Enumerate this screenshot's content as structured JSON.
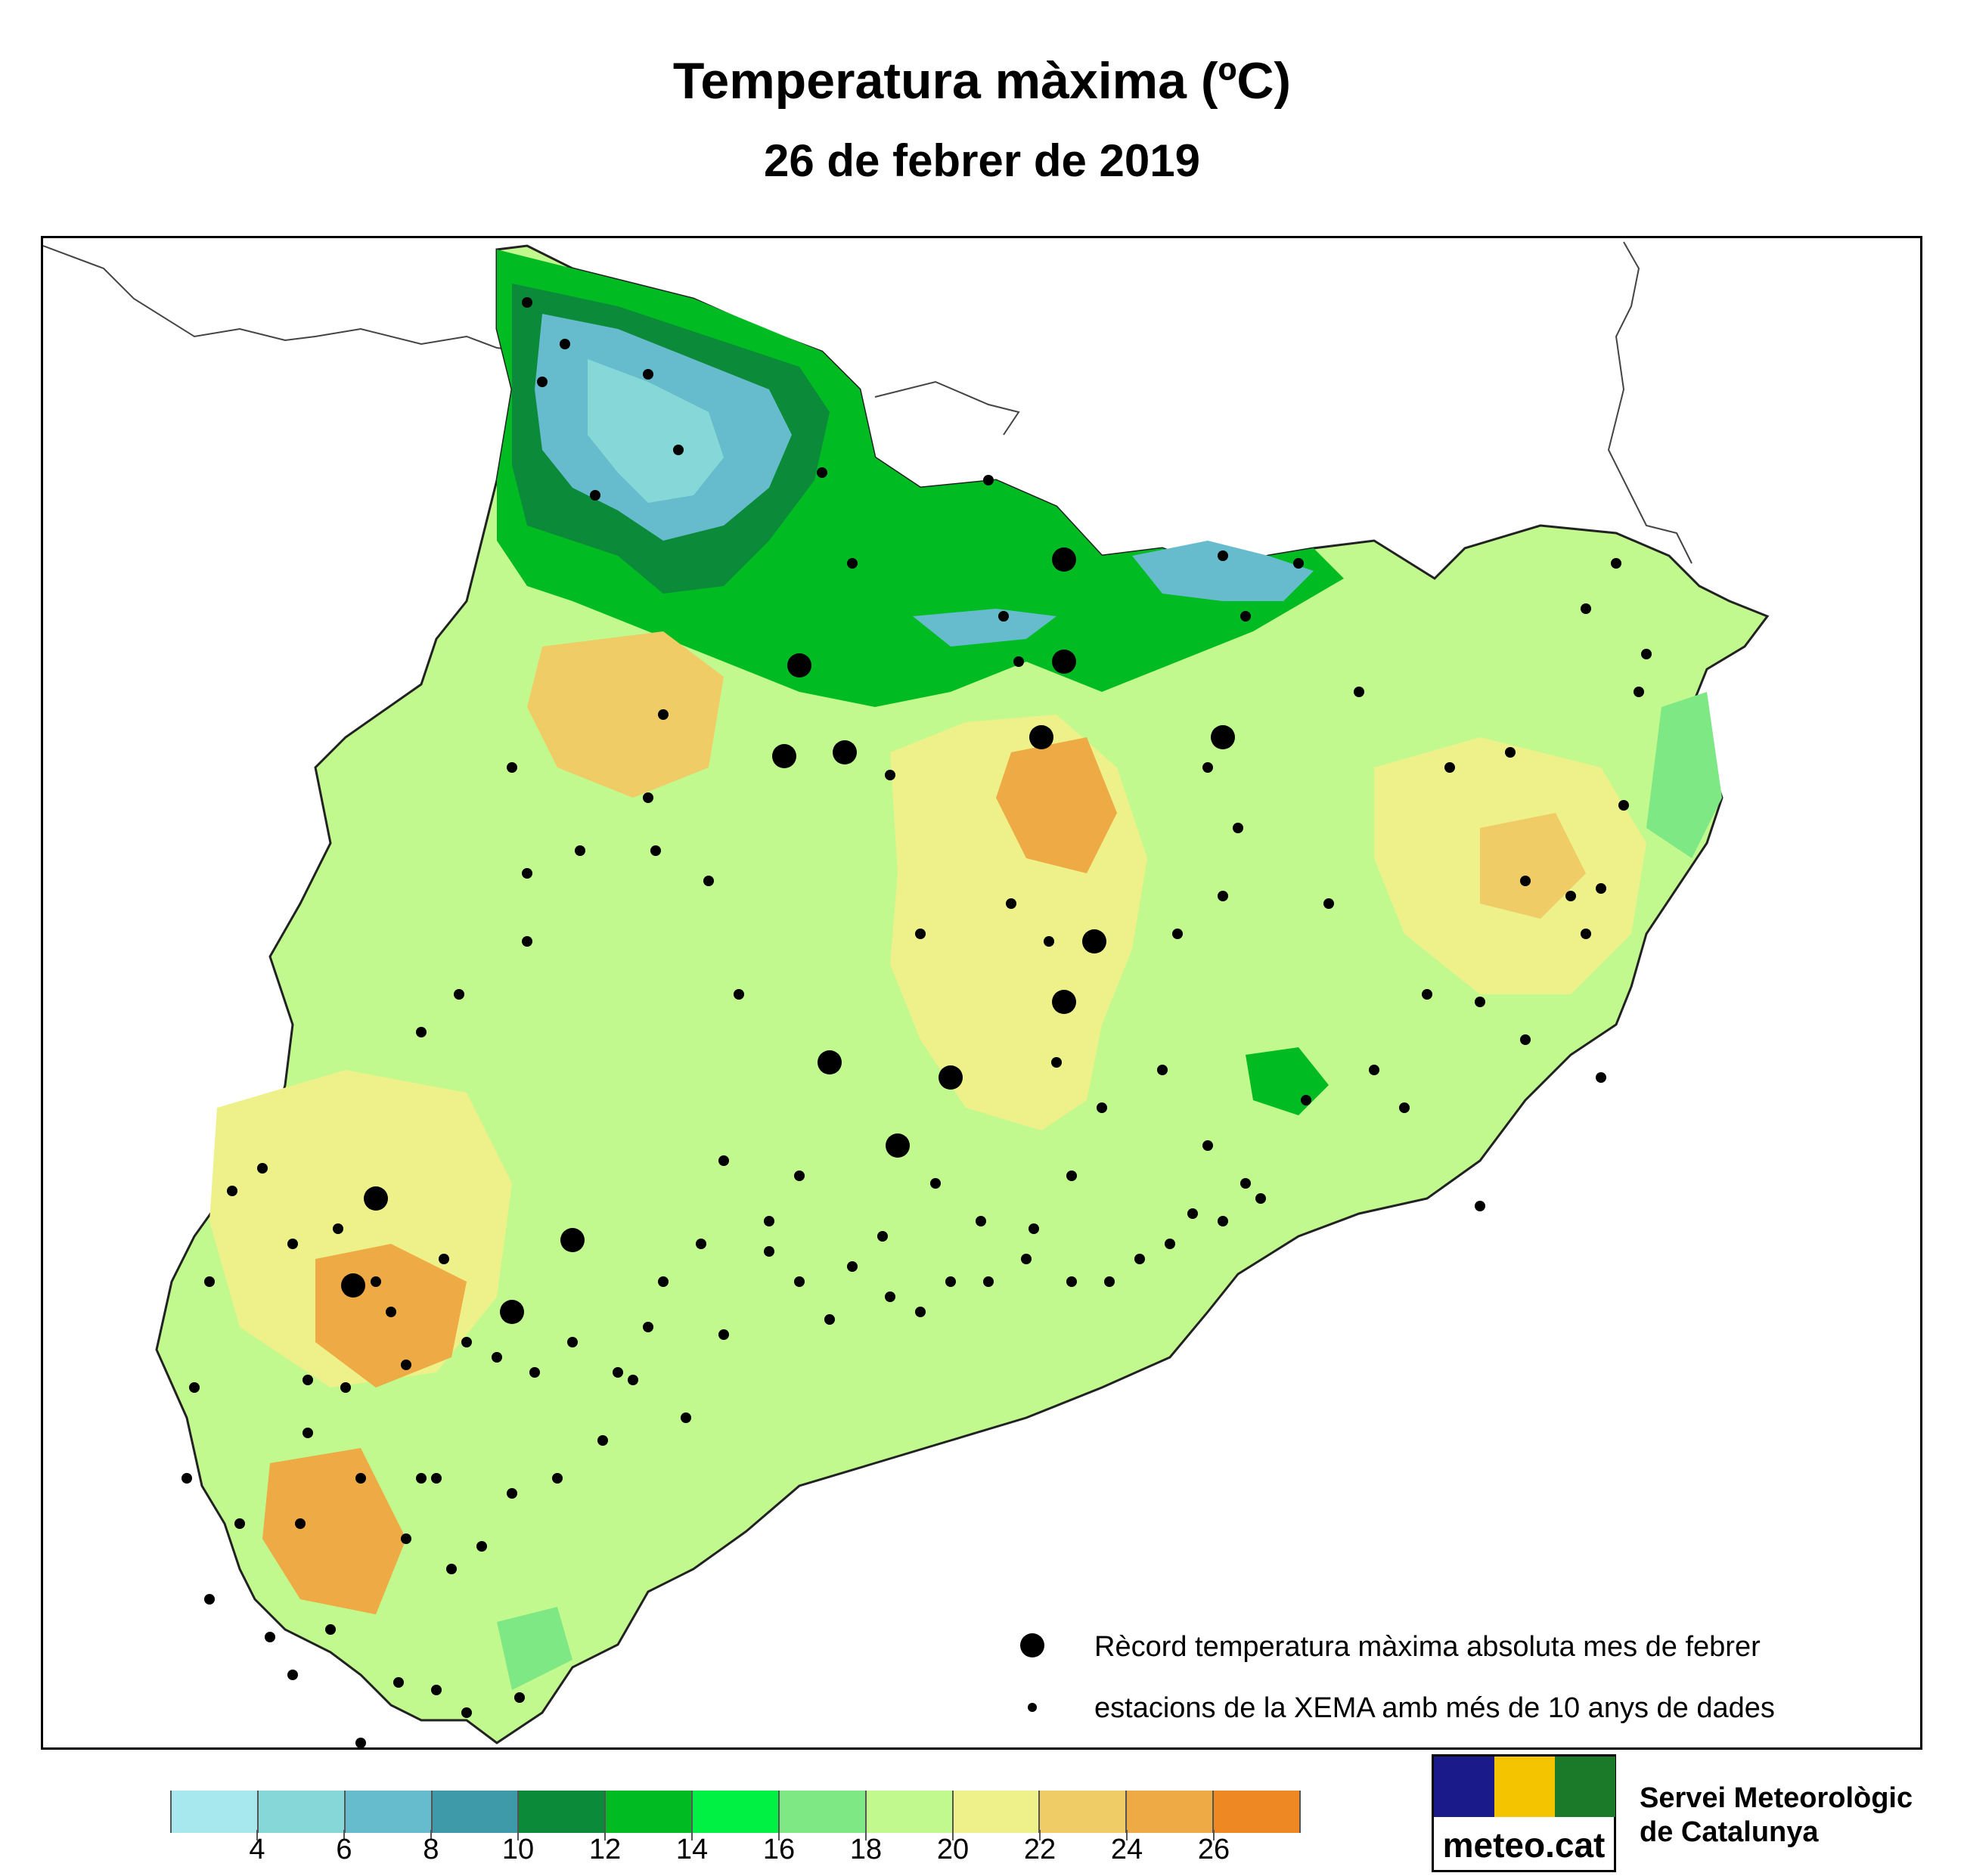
{
  "title": "Temperatura màxima (ºC)",
  "subtitle": "26 de febrer de 2019",
  "legend": {
    "record_label": "Rècord temperatura màxima absoluta mes de febrer",
    "station_label": "estacions de la XEMA amb més de 10 anys de dades"
  },
  "colorbar": {
    "colors": [
      "#a6e8ee",
      "#86d8d8",
      "#66bccc",
      "#3e9aa8",
      "#0b8a3a",
      "#00bb22",
      "#00f044",
      "#7ee884",
      "#c2f98e",
      "#eef18a",
      "#f0cc66",
      "#eeaa44",
      "#ee8822"
    ],
    "tick_labels": [
      "4",
      "6",
      "8",
      "10",
      "12",
      "14",
      "16",
      "18",
      "20",
      "22",
      "24",
      "26"
    ]
  },
  "map_colors": {
    "warm": "#eeaa44",
    "warm_light": "#f0cc66",
    "mid": "#eef18a",
    "mild": "#c2f98e",
    "cool": "#7ee884",
    "green": "#00bb22",
    "dark_green": "#0b8a3a",
    "blue": "#66bccc",
    "pale_blue": "#86d8d8"
  },
  "logo": {
    "text": "meteo.cat",
    "org_line1": "Servei Meteorològic",
    "org_line2": "de Catalunya",
    "square_colors": [
      "#1a1a8a",
      "#f5c400",
      "#1a7a2a"
    ]
  }
}
